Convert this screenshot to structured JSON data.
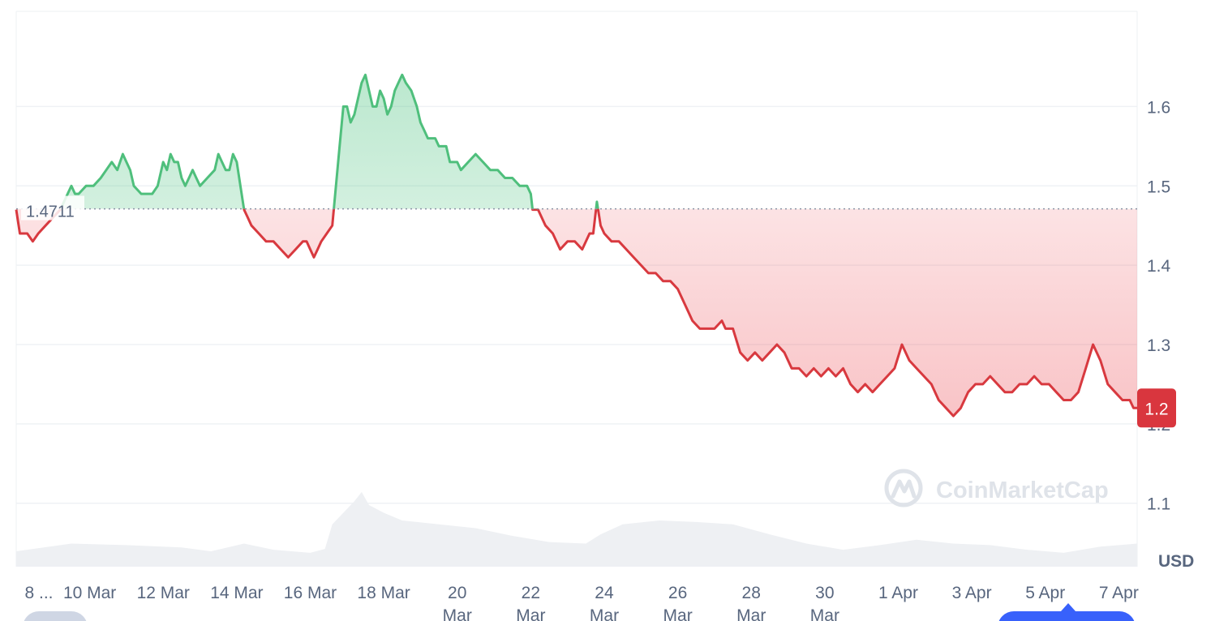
{
  "chart_data": {
    "type": "area",
    "currency": "USD",
    "ylim": [
      1.02,
      1.72
    ],
    "y_ticks": [
      1.1,
      1.2,
      1.3,
      1.4,
      1.5,
      1.6
    ],
    "x_ticks": [
      {
        "label": "8 ...",
        "day": 0
      },
      {
        "label": "10 Mar",
        "day": 2
      },
      {
        "label": "12 Mar",
        "day": 4
      },
      {
        "label": "14 Mar",
        "day": 6
      },
      {
        "label": "16 Mar",
        "day": 8
      },
      {
        "label": "18 Mar",
        "day": 10
      },
      {
        "label": "20 Mar",
        "day": 12
      },
      {
        "label": "22 Mar",
        "day": 14
      },
      {
        "label": "24 Mar",
        "day": 16
      },
      {
        "label": "26 Mar",
        "day": 18
      },
      {
        "label": "28 Mar",
        "day": 20
      },
      {
        "label": "30 Mar",
        "day": 22
      },
      {
        "label": "1 Apr",
        "day": 24
      },
      {
        "label": "3 Apr",
        "day": 26
      },
      {
        "label": "5 Apr",
        "day": 28
      },
      {
        "label": "7 Apr",
        "day": 30
      }
    ],
    "reference": {
      "value": 1.4711,
      "label": "1.4711"
    },
    "current": {
      "value": 1.22,
      "label": "1.2"
    },
    "price": [
      [
        0.0,
        1.47
      ],
      [
        0.1,
        1.44
      ],
      [
        0.3,
        1.44
      ],
      [
        0.45,
        1.43
      ],
      [
        0.6,
        1.44
      ],
      [
        0.8,
        1.45
      ],
      [
        1.0,
        1.46
      ],
      [
        1.2,
        1.47
      ],
      [
        1.4,
        1.49
      ],
      [
        1.5,
        1.5
      ],
      [
        1.6,
        1.49
      ],
      [
        1.7,
        1.49
      ],
      [
        1.9,
        1.5
      ],
      [
        2.1,
        1.5
      ],
      [
        2.3,
        1.51
      ],
      [
        2.45,
        1.52
      ],
      [
        2.6,
        1.53
      ],
      [
        2.75,
        1.52
      ],
      [
        2.9,
        1.54
      ],
      [
        3.0,
        1.53
      ],
      [
        3.1,
        1.52
      ],
      [
        3.2,
        1.5
      ],
      [
        3.4,
        1.49
      ],
      [
        3.55,
        1.49
      ],
      [
        3.7,
        1.49
      ],
      [
        3.85,
        1.5
      ],
      [
        4.0,
        1.53
      ],
      [
        4.1,
        1.52
      ],
      [
        4.2,
        1.54
      ],
      [
        4.3,
        1.53
      ],
      [
        4.4,
        1.53
      ],
      [
        4.5,
        1.51
      ],
      [
        4.6,
        1.5
      ],
      [
        4.7,
        1.51
      ],
      [
        4.8,
        1.52
      ],
      [
        4.9,
        1.51
      ],
      [
        5.0,
        1.5
      ],
      [
        5.2,
        1.51
      ],
      [
        5.4,
        1.52
      ],
      [
        5.5,
        1.54
      ],
      [
        5.6,
        1.53
      ],
      [
        5.7,
        1.52
      ],
      [
        5.8,
        1.52
      ],
      [
        5.9,
        1.54
      ],
      [
        6.0,
        1.53
      ],
      [
        6.1,
        1.5
      ],
      [
        6.2,
        1.47
      ],
      [
        6.3,
        1.46
      ],
      [
        6.4,
        1.45
      ],
      [
        6.6,
        1.44
      ],
      [
        6.8,
        1.43
      ],
      [
        7.0,
        1.43
      ],
      [
        7.2,
        1.42
      ],
      [
        7.4,
        1.41
      ],
      [
        7.6,
        1.42
      ],
      [
        7.8,
        1.43
      ],
      [
        7.9,
        1.43
      ],
      [
        8.0,
        1.42
      ],
      [
        8.1,
        1.41
      ],
      [
        8.2,
        1.42
      ],
      [
        8.3,
        1.43
      ],
      [
        8.45,
        1.44
      ],
      [
        8.6,
        1.45
      ],
      [
        8.7,
        1.5
      ],
      [
        8.8,
        1.55
      ],
      [
        8.9,
        1.6
      ],
      [
        9.0,
        1.6
      ],
      [
        9.1,
        1.58
      ],
      [
        9.2,
        1.59
      ],
      [
        9.3,
        1.61
      ],
      [
        9.4,
        1.63
      ],
      [
        9.5,
        1.64
      ],
      [
        9.6,
        1.62
      ],
      [
        9.7,
        1.6
      ],
      [
        9.8,
        1.6
      ],
      [
        9.9,
        1.62
      ],
      [
        10.0,
        1.61
      ],
      [
        10.1,
        1.59
      ],
      [
        10.2,
        1.6
      ],
      [
        10.3,
        1.62
      ],
      [
        10.4,
        1.63
      ],
      [
        10.5,
        1.64
      ],
      [
        10.6,
        1.63
      ],
      [
        10.75,
        1.62
      ],
      [
        10.9,
        1.6
      ],
      [
        11.0,
        1.58
      ],
      [
        11.1,
        1.57
      ],
      [
        11.2,
        1.56
      ],
      [
        11.4,
        1.56
      ],
      [
        11.5,
        1.55
      ],
      [
        11.7,
        1.55
      ],
      [
        11.8,
        1.53
      ],
      [
        12.0,
        1.53
      ],
      [
        12.1,
        1.52
      ],
      [
        12.3,
        1.53
      ],
      [
        12.5,
        1.54
      ],
      [
        12.7,
        1.53
      ],
      [
        12.9,
        1.52
      ],
      [
        13.1,
        1.52
      ],
      [
        13.3,
        1.51
      ],
      [
        13.5,
        1.51
      ],
      [
        13.7,
        1.5
      ],
      [
        13.9,
        1.5
      ],
      [
        14.0,
        1.49
      ],
      [
        14.05,
        1.47
      ],
      [
        14.2,
        1.47
      ],
      [
        14.4,
        1.45
      ],
      [
        14.6,
        1.44
      ],
      [
        14.8,
        1.42
      ],
      [
        15.0,
        1.43
      ],
      [
        15.2,
        1.43
      ],
      [
        15.4,
        1.42
      ],
      [
        15.6,
        1.44
      ],
      [
        15.7,
        1.44
      ],
      [
        15.8,
        1.48
      ],
      [
        15.9,
        1.45
      ],
      [
        16.0,
        1.44
      ],
      [
        16.2,
        1.43
      ],
      [
        16.4,
        1.43
      ],
      [
        16.6,
        1.42
      ],
      [
        16.8,
        1.41
      ],
      [
        17.0,
        1.4
      ],
      [
        17.2,
        1.39
      ],
      [
        17.4,
        1.39
      ],
      [
        17.6,
        1.38
      ],
      [
        17.8,
        1.38
      ],
      [
        18.0,
        1.37
      ],
      [
        18.2,
        1.35
      ],
      [
        18.4,
        1.33
      ],
      [
        18.6,
        1.32
      ],
      [
        18.8,
        1.32
      ],
      [
        19.0,
        1.32
      ],
      [
        19.2,
        1.33
      ],
      [
        19.3,
        1.32
      ],
      [
        19.5,
        1.32
      ],
      [
        19.7,
        1.29
      ],
      [
        19.9,
        1.28
      ],
      [
        20.1,
        1.29
      ],
      [
        20.3,
        1.28
      ],
      [
        20.5,
        1.29
      ],
      [
        20.7,
        1.3
      ],
      [
        20.9,
        1.29
      ],
      [
        21.1,
        1.27
      ],
      [
        21.3,
        1.27
      ],
      [
        21.5,
        1.26
      ],
      [
        21.7,
        1.27
      ],
      [
        21.9,
        1.26
      ],
      [
        22.1,
        1.27
      ],
      [
        22.3,
        1.26
      ],
      [
        22.5,
        1.27
      ],
      [
        22.7,
        1.25
      ],
      [
        22.9,
        1.24
      ],
      [
        23.1,
        1.25
      ],
      [
        23.3,
        1.24
      ],
      [
        23.5,
        1.25
      ],
      [
        23.7,
        1.26
      ],
      [
        23.9,
        1.27
      ],
      [
        24.1,
        1.3
      ],
      [
        24.3,
        1.28
      ],
      [
        24.5,
        1.27
      ],
      [
        24.7,
        1.26
      ],
      [
        24.9,
        1.25
      ],
      [
        25.1,
        1.23
      ],
      [
        25.3,
        1.22
      ],
      [
        25.5,
        1.21
      ],
      [
        25.7,
        1.22
      ],
      [
        25.9,
        1.24
      ],
      [
        26.1,
        1.25
      ],
      [
        26.3,
        1.25
      ],
      [
        26.5,
        1.26
      ],
      [
        26.7,
        1.25
      ],
      [
        26.9,
        1.24
      ],
      [
        27.1,
        1.24
      ],
      [
        27.3,
        1.25
      ],
      [
        27.5,
        1.25
      ],
      [
        27.7,
        1.26
      ],
      [
        27.9,
        1.25
      ],
      [
        28.1,
        1.25
      ],
      [
        28.3,
        1.24
      ],
      [
        28.5,
        1.23
      ],
      [
        28.7,
        1.23
      ],
      [
        28.9,
        1.24
      ],
      [
        29.1,
        1.27
      ],
      [
        29.3,
        1.3
      ],
      [
        29.5,
        1.28
      ],
      [
        29.7,
        1.25
      ],
      [
        29.9,
        1.24
      ],
      [
        30.1,
        1.23
      ],
      [
        30.3,
        1.23
      ],
      [
        30.4,
        1.22
      ],
      [
        30.5,
        1.22
      ]
    ],
    "volume": [
      [
        0.0,
        0.2
      ],
      [
        1.5,
        0.3
      ],
      [
        3.0,
        0.28
      ],
      [
        4.5,
        0.25
      ],
      [
        5.3,
        0.2
      ],
      [
        6.2,
        0.3
      ],
      [
        7.0,
        0.22
      ],
      [
        8.0,
        0.18
      ],
      [
        8.4,
        0.23
      ],
      [
        8.6,
        0.55
      ],
      [
        9.2,
        0.85
      ],
      [
        9.4,
        0.97
      ],
      [
        9.6,
        0.8
      ],
      [
        10.0,
        0.7
      ],
      [
        10.5,
        0.6
      ],
      [
        11.5,
        0.55
      ],
      [
        12.5,
        0.5
      ],
      [
        13.5,
        0.4
      ],
      [
        14.5,
        0.32
      ],
      [
        15.5,
        0.3
      ],
      [
        15.9,
        0.42
      ],
      [
        16.5,
        0.55
      ],
      [
        17.5,
        0.6
      ],
      [
        18.5,
        0.58
      ],
      [
        19.5,
        0.55
      ],
      [
        20.5,
        0.42
      ],
      [
        21.5,
        0.3
      ],
      [
        22.5,
        0.22
      ],
      [
        23.5,
        0.28
      ],
      [
        24.5,
        0.35
      ],
      [
        25.5,
        0.3
      ],
      [
        26.5,
        0.28
      ],
      [
        27.5,
        0.22
      ],
      [
        28.5,
        0.18
      ],
      [
        29.5,
        0.26
      ],
      [
        30.5,
        0.3
      ]
    ]
  },
  "watermark": {
    "text": "CoinMarketCap"
  },
  "colors": {
    "up": "#16c784",
    "down": "#ea3943",
    "badge": "#d9363e"
  }
}
